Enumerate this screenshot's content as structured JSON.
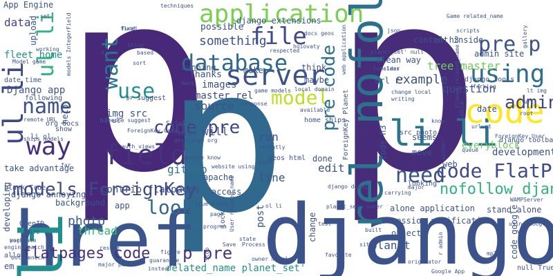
{
  "words": [
    {
      "text": "p",
      "color": "#482878"
    },
    {
      "text": "p",
      "color": "#472c7a"
    },
    {
      "text": "p",
      "color": "#31688e"
    },
    {
      "text": "href",
      "color": "#3a548c"
    },
    {
      "text": "django",
      "color": "#3b528b"
    },
    {
      "text": "rel nofollow",
      "color": "#2c728e"
    },
    {
      "text": "li",
      "color": "#218f8d"
    },
    {
      "text": "ul li",
      "color": "#3e4989"
    },
    {
      "text": "li li",
      "color": "#2a768e"
    },
    {
      "text": "application",
      "color": "#7ad151"
    },
    {
      "text": "server",
      "color": "#3b528b"
    },
    {
      "text": "database",
      "color": "#31688e"
    },
    {
      "text": "using",
      "color": "#2e6e8e"
    },
    {
      "text": "code",
      "color": "#fde725"
    },
    {
      "text": "pre p",
      "color": "#3b528b"
    },
    {
      "text": "file",
      "color": "#3e4a89"
    },
    {
      "text": "field",
      "color": "#46337e"
    },
    {
      "text": "models ForeignKey",
      "color": "#3f4889"
    },
    {
      "text": "way",
      "color": "#472d7b"
    },
    {
      "text": "name",
      "color": "#3b528b"
    },
    {
      "text": "use",
      "color": "#21918c"
    },
    {
      "text": "want",
      "color": "#2a788e"
    },
    {
      "text": "model",
      "color": "#bddf26"
    },
    {
      "text": "nofollow django",
      "color": "#2fb47c"
    },
    {
      "text": "code FlatPage",
      "color": "#3e4a89"
    },
    {
      "text": "admin",
      "color": "#414487"
    },
    {
      "text": "need",
      "color": "#3b528b"
    },
    {
      "text": "code pre",
      "color": "#414487"
    },
    {
      "text": "look",
      "color": "#31688e"
    },
    {
      "text": "flatpages code",
      "color": "#46327e"
    },
    {
      "text": "p pre",
      "color": "#46337e"
    },
    {
      "text": "ul li",
      "color": "#2fb47c"
    },
    {
      "text": "pre code",
      "color": "#2c728e"
    },
    {
      "text": "something",
      "color": "#3b528b"
    },
    {
      "text": "photo",
      "color": "#38598c"
    },
    {
      "text": "thread",
      "color": "#35b779"
    },
    {
      "text": "App Engine",
      "color": "#3b528b"
    },
    {
      "text": "data",
      "color": "#414487"
    },
    {
      "text": "fleet home",
      "color": "#21918c"
    },
    {
      "text": "Django app",
      "color": "#3b528b"
    },
    {
      "text": "example",
      "color": "#3b528b"
    },
    {
      "text": "tree master",
      "color": "#6ece58"
    },
    {
      "text": "question",
      "color": "#3b528b"
    },
    {
      "text": "source",
      "color": "#3b528b"
    },
    {
      "text": "github",
      "color": "#2c728e"
    },
    {
      "text": "master rel",
      "color": "#3e4989"
    },
    {
      "text": "related_name planet_set'",
      "color": "#21918c"
    },
    {
      "text": "run",
      "color": "#3b528b"
    },
    {
      "text": "line",
      "color": "#3b528b"
    },
    {
      "text": "edit",
      "color": "#3b528b"
    },
    {
      "text": "planet",
      "color": "#3b528b"
    },
    {
      "text": "post",
      "color": "#3b528b"
    },
    {
      "text": "Thanks",
      "color": "#3b528b"
    },
    {
      "text": "possible",
      "color": "#3b528b"
    },
    {
      "text": "django extensions",
      "color": "#3b528b"
    },
    {
      "text": "img src",
      "color": "#3b528b"
    },
    {
      "text": "will",
      "color": "#3b528b"
    },
    {
      "text": "images",
      "color": "#3b528b"
    },
    {
      "text": "running",
      "color": "#3b528b"
    },
    {
      "text": "make",
      "color": "#3b528b"
    },
    {
      "text": "think",
      "color": "#3b528b"
    },
    {
      "text": "maybe",
      "color": "#3b528b"
    },
    {
      "text": "clean way",
      "color": "#3b528b"
    },
    {
      "text": "content inside",
      "color": "#3b528b"
    },
    {
      "text": "admin site",
      "color": "#3b528b"
    },
    {
      "text": "django tools",
      "color": "#3b528b"
    },
    {
      "text": "suggest",
      "color": "#3b528b"
    },
    {
      "text": "everyblock",
      "color": "#6ece58"
    },
    {
      "text": "development",
      "color": "#3b528b"
    },
    {
      "text": "django toolbar",
      "color": "#3b528b"
    },
    {
      "text": "stand alone",
      "color": "#3b528b"
    },
    {
      "text": "alone application",
      "color": "#3b528b"
    },
    {
      "text": "session verification",
      "color": "#3b528b"
    },
    {
      "text": "background",
      "color": "#3b528b"
    },
    {
      "text": "take advantage",
      "color": "#3b528b"
    },
    {
      "text": "contrib flatpages",
      "color": "#3b528b"
    },
    {
      "text": "apache",
      "color": "#3b528b"
    },
    {
      "text": "access",
      "color": "#3b528b"
    },
    {
      "text": "object",
      "color": "#3b528b"
    },
    {
      "text": "ul h3",
      "color": "#3b528b"
    },
    {
      "text": "url r'",
      "color": "#3b528b"
    },
    {
      "text": "date",
      "color": "#3b528b"
    },
    {
      "text": "seems",
      "color": "#3b528b"
    },
    {
      "text": "move",
      "color": "#3b528b"
    },
    {
      "text": "done",
      "color": "#3b528b"
    },
    {
      "text": "geos html",
      "color": "#3b528b"
    },
    {
      "text": "home ships",
      "color": "#3b528b"
    },
    {
      "text": "app",
      "color": "#3b528b"
    },
    {
      "text": "django annoying",
      "color": "#3b528b"
    },
    {
      "text": "blank True",
      "color": "#3b528b"
    },
    {
      "text": "developing",
      "color": "#3b528b"
    },
    {
      "text": "OpenID",
      "color": "#3b528b"
    },
    {
      "text": "allow",
      "color": "#3b528b"
    },
    {
      "text": "em",
      "color": "#3b528b"
    },
    {
      "text": "h3 ul",
      "color": "#3b528b"
    },
    {
      "text": "li ol",
      "color": "#3b528b"
    },
    {
      "text": "show",
      "color": "#3b528b"
    },
    {
      "text": "upload",
      "color": "#3b528b"
    },
    {
      "text": "set",
      "color": "#3b528b"
    },
    {
      "text": "date time",
      "color": "#3b528b"
    },
    {
      "text": "following",
      "color": "#3b528b"
    },
    {
      "text": "remote URL",
      "color": "#3b528b"
    },
    {
      "text": "ships models",
      "color": "#3b528b"
    },
    {
      "text": "Model game",
      "color": "#3b528b"
    },
    {
      "text": "ForeignKey Game",
      "color": "#3b528b"
    },
    {
      "text": "auth_views",
      "color": "#3b528b"
    },
    {
      "text": "Safari",
      "color": "#3b528b"
    },
    {
      "text": "geodjango org",
      "color": "#3b528b"
    },
    {
      "text": "fixture",
      "color": "#3b528b"
    },
    {
      "text": "anyone know",
      "color": "#3b528b"
    },
    {
      "text": "true blank",
      "color": "#3b528b"
    },
    {
      "text": "ol li",
      "color": "#3b528b"
    },
    {
      "text": "lock",
      "color": "#3b528b"
    },
    {
      "text": "django debug",
      "color": "#3b528b"
    },
    {
      "text": "planet_set' owner",
      "color": "#3b528b"
    },
    {
      "text": "change",
      "color": "#3b528b"
    },
    {
      "text": "stop",
      "color": "#3b528b"
    },
    {
      "text": "instead",
      "color": "#3b528b"
    },
    {
      "text": "figure",
      "color": "#3b528b"
    },
    {
      "text": "guarantee",
      "color": "#3b528b"
    },
    {
      "text": "owner models",
      "color": "#3b528b"
    },
    {
      "text": "state",
      "color": "#3b528b"
    },
    {
      "text": "Save",
      "color": "#3b528b"
    },
    {
      "text": "Process",
      "color": "#3b528b"
    },
    {
      "text": "page",
      "color": "#3b528b"
    },
    {
      "text": "program",
      "color": "#3b528b"
    },
    {
      "text": "work",
      "color": "#3b528b"
    },
    {
      "text": "Life",
      "color": "#3b528b"
    },
    {
      "text": "paginate",
      "color": "#3b528b"
    },
    {
      "text": "engine patch",
      "color": "#3b528b"
    },
    {
      "text": "major part",
      "color": "#3b528b"
    },
    {
      "text": "resume",
      "color": "#3b528b"
    },
    {
      "text": "built",
      "color": "#3b528b"
    },
    {
      "text": "site",
      "color": "#3b528b"
    },
    {
      "text": "test",
      "color": "#3b528b"
    },
    {
      "text": "favorite",
      "color": "#3b528b"
    },
    {
      "text": "originator",
      "color": "#3b528b"
    },
    {
      "text": "Google App",
      "color": "#3b528b"
    },
    {
      "text": "null True",
      "color": "#3b528b"
    },
    {
      "text": "mp3",
      "color": "#3b528b"
    },
    {
      "text": "root",
      "color": "#3b528b"
    },
    {
      "text": "url gt",
      "color": "#3b528b"
    },
    {
      "text": "queue",
      "color": "#3b528b"
    },
    {
      "text": "using Google",
      "color": "#3b528b"
    },
    {
      "text": "WAMPServer",
      "color": "#3b528b"
    },
    {
      "text": "ForeignKey User",
      "color": "#3b528b"
    },
    {
      "text": "lt img",
      "color": "#3b528b"
    },
    {
      "text": "forking",
      "color": "#3b528b"
    },
    {
      "text": "gallery",
      "color": "#3b528b"
    },
    {
      "text": "scripts",
      "color": "#3b528b"
    },
    {
      "text": "Consider",
      "color": "#3b528b"
    },
    {
      "text": "writing",
      "color": "#3b528b"
    },
    {
      "text": "change local",
      "color": "#3b528b"
    },
    {
      "text": "Game related_name",
      "color": "#3b528b"
    },
    {
      "text": "techniques",
      "color": "#3b528b"
    },
    {
      "text": "web application",
      "color": "#3b528b"
    },
    {
      "text": "docs geos",
      "color": "#3b528b"
    },
    {
      "text": "json",
      "color": "#3b528b"
    },
    {
      "text": "hoiovaty",
      "color": "#3b528b"
    },
    {
      "text": "respected",
      "color": "#3b528b"
    },
    {
      "text": "fix",
      "color": "#3b528b"
    },
    {
      "text": "based",
      "color": "#3b528b"
    },
    {
      "text": "sort",
      "color": "#3b528b"
    },
    {
      "text": "thing",
      "color": "#3b528b"
    },
    {
      "text": "fixed",
      "color": "#3b528b"
    },
    {
      "text": "working",
      "color": "#3b528b"
    },
    {
      "text": "models IntegerField",
      "color": "#3b528b"
    },
    {
      "text": "help",
      "color": "#3b528b"
    },
    {
      "text": "org docs",
      "color": "#3b528b"
    },
    {
      "text": "response",
      "color": "#3b528b"
    },
    {
      "text": "game models",
      "color": "#3b528b"
    },
    {
      "text": "local domain",
      "color": "#3b528b"
    },
    {
      "text": "go",
      "color": "#3b528b"
    },
    {
      "text": "many",
      "color": "#3b528b"
    },
    {
      "text": "someone suggest",
      "color": "#3b528b"
    },
    {
      "text": "website using",
      "color": "#3b528b"
    },
    {
      "text": "recently",
      "color": "#3b528b"
    },
    {
      "text": "back",
      "color": "#3b528b"
    },
    {
      "text": "available",
      "color": "#3b528b"
    },
    {
      "text": "code h3",
      "color": "#3b528b"
    },
    {
      "text": "ForeignKey Planet",
      "color": "#3b528b"
    },
    {
      "text": "src photo",
      "color": "#3b528b"
    },
    {
      "text": "know",
      "color": "#3b528b"
    },
    {
      "text": "looking",
      "color": "#3b528b"
    },
    {
      "text": "web",
      "color": "#3b528b"
    },
    {
      "text": "major",
      "color": "#3b528b"
    },
    {
      "text": "r admin",
      "color": "#3b528b"
    },
    {
      "text": "able",
      "color": "#3b528b"
    },
    {
      "text": "author",
      "color": "#3b528b"
    },
    {
      "text": "Planet related_name",
      "color": "#3b528b"
    },
    {
      "text": "class",
      "color": "#3b528b"
    },
    {
      "text": "planet_set' null",
      "color": "#3b528b"
    },
    {
      "text": "far",
      "color": "#3b528b"
    },
    {
      "text": "Fund",
      "color": "#3b528b"
    },
    {
      "text": "User related_name",
      "color": "#3b528b"
    },
    {
      "text": "code google",
      "color": "#3b528b"
    },
    {
      "text": "url",
      "color": "#3b528b"
    },
    {
      "text": "bottleneck",
      "color": "#3b528b"
    },
    {
      "text": "carrying",
      "color": "#3b528b"
    }
  ]
}
